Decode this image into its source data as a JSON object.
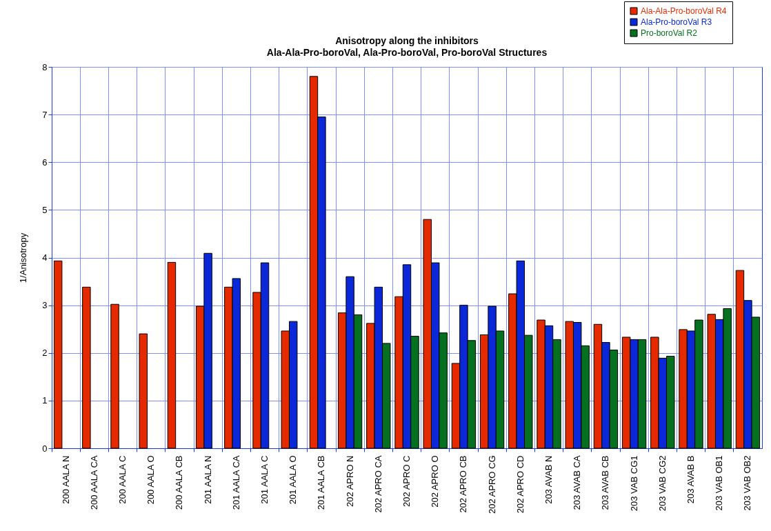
{
  "chart_data": {
    "type": "bar",
    "title": "Anisotropy along the inhibitors",
    "subtitle": "Ala-Ala-Pro-boroVal, Ala-Pro-boroVal, Pro-boroVal Structures",
    "ylabel": "1/Anisotropy",
    "categories": [
      "200 AALA N",
      "200 AALA CA",
      "200 AALA C",
      "200 AALA O",
      "200 AALA CB",
      "201 AALA N",
      "201 AALA CA",
      "201 AALA C",
      "201 AALA O",
      "201 AALA CB",
      "202 APRO N",
      "202 APRO CA",
      "202 APRO C",
      "202 APRO O",
      "202 APRO CB",
      "202 APRO CG",
      "202 APRO CD",
      "203 AVAB N",
      "203 AVAB CA",
      "203 AVAB CB",
      "203 VAB CG1",
      "203 VAB CG2",
      "203 AVAB B",
      "203 VAB OB1",
      "203 VAB OB2"
    ],
    "series": [
      {
        "name": "Ala-Ala-Pro-boroVal R4",
        "color": "#e62a00",
        "values": [
          3.93,
          3.38,
          3.02,
          2.4,
          3.9,
          2.98,
          3.38,
          3.27,
          2.46,
          7.8,
          2.84,
          2.62,
          3.18,
          4.8,
          1.78,
          2.38,
          3.24,
          2.69,
          2.66,
          2.6,
          2.33,
          2.33,
          2.49,
          2.81,
          3.73
        ]
      },
      {
        "name": "Ala-Pro-boroVal R3",
        "color": "#0a28d8",
        "values": [
          null,
          null,
          null,
          null,
          null,
          4.09,
          3.56,
          3.89,
          2.66,
          6.95,
          3.6,
          3.38,
          3.85,
          3.89,
          3.0,
          2.98,
          3.93,
          2.57,
          2.64,
          2.22,
          2.28,
          1.89,
          2.46,
          2.7,
          3.1
        ]
      },
      {
        "name": "Pro-boroVal R2",
        "color": "#047020",
        "values": [
          null,
          null,
          null,
          null,
          null,
          null,
          null,
          null,
          null,
          null,
          2.8,
          2.2,
          2.35,
          2.42,
          2.26,
          2.46,
          2.37,
          2.28,
          2.15,
          2.06,
          2.28,
          1.93,
          2.69,
          2.93,
          2.75
        ]
      }
    ],
    "ylim": [
      0,
      8
    ],
    "yticks": [
      0,
      1,
      2,
      3,
      4,
      5,
      6,
      7,
      8
    ],
    "grid": true,
    "legend": "top right"
  }
}
